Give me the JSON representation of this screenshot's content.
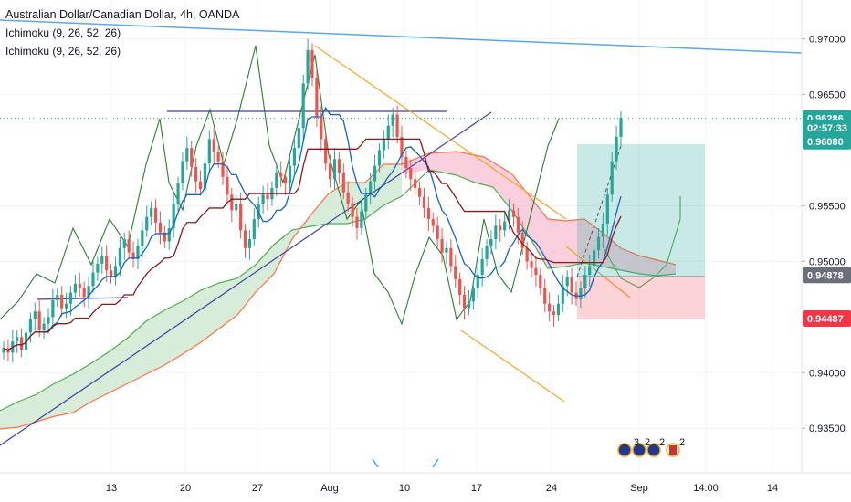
{
  "header": {
    "title": "Australian Dollar/Canadian Dollar, 4h, OANDA",
    "indicators": [
      "Ichimoku (9, 26, 52, 26)",
      "Ichimoku (9, 26, 52, 26)"
    ]
  },
  "chart_data": {
    "type": "candlestick",
    "x_ticks": [
      "13",
      "20",
      "27",
      "Aug",
      "10",
      "17",
      "24",
      "Sep",
      "14:00",
      "14"
    ],
    "y_ticks": [
      "0.97000",
      "0.96500",
      "0.95500",
      "0.95000",
      "0.94000",
      "0.93500"
    ],
    "ylim": [
      0.931,
      0.9735
    ],
    "price_tags": [
      {
        "label": "0.96286",
        "value": 0.96286,
        "color": "#26a69a"
      },
      {
        "label": "02:57:33",
        "value": 0.962,
        "color": "#26a69a"
      },
      {
        "label": "0.96080",
        "value": 0.9608,
        "color": "#26a69a"
      },
      {
        "label": "0.94878",
        "value": 0.94878,
        "color": "#6b6f7a"
      },
      {
        "label": "0.94487",
        "value": 0.94487,
        "color": "#f23645"
      }
    ],
    "close_series": [
      0.9422,
      0.9418,
      0.9428,
      0.9432,
      0.942,
      0.9436,
      0.9448,
      0.9455,
      0.9438,
      0.9444,
      0.945,
      0.9465,
      0.947,
      0.9458,
      0.9462,
      0.9472,
      0.948,
      0.9476,
      0.9468,
      0.9478,
      0.949,
      0.9498,
      0.9505,
      0.9492,
      0.9486,
      0.9496,
      0.9512,
      0.952,
      0.9508,
      0.9502,
      0.9514,
      0.9528,
      0.954,
      0.9548,
      0.9535,
      0.9526,
      0.9518,
      0.953,
      0.9552,
      0.957,
      0.959,
      0.9602,
      0.9585,
      0.9572,
      0.9565,
      0.9588,
      0.961,
      0.9598,
      0.959,
      0.9576,
      0.956,
      0.9546,
      0.9552,
      0.9528,
      0.9512,
      0.952,
      0.9538,
      0.9552,
      0.956,
      0.9556,
      0.9566,
      0.958,
      0.9576,
      0.957,
      0.9586,
      0.9602,
      0.962,
      0.966,
      0.969,
      0.9665,
      0.963,
      0.961,
      0.9588,
      0.9574,
      0.9592,
      0.958,
      0.9562,
      0.9552,
      0.954,
      0.953,
      0.9545,
      0.956,
      0.9572,
      0.9586,
      0.96,
      0.961,
      0.9622,
      0.9632,
      0.9612,
      0.9594,
      0.9584,
      0.9574,
      0.9566,
      0.9558,
      0.9548,
      0.9538,
      0.9532,
      0.952,
      0.9508,
      0.9512,
      0.9496,
      0.9484,
      0.947,
      0.9458,
      0.9464,
      0.9476,
      0.9488,
      0.9502,
      0.9514,
      0.952,
      0.9532,
      0.9528,
      0.9536,
      0.9546,
      0.954,
      0.9526,
      0.9512,
      0.95,
      0.9494,
      0.9488,
      0.9476,
      0.9462,
      0.9455,
      0.9452,
      0.9462,
      0.9478,
      0.9486,
      0.9472,
      0.9466,
      0.9476,
      0.9488,
      0.9496,
      0.951,
      0.9522,
      0.9534,
      0.956,
      0.959,
      0.9612,
      0.9629
    ]
  }
}
